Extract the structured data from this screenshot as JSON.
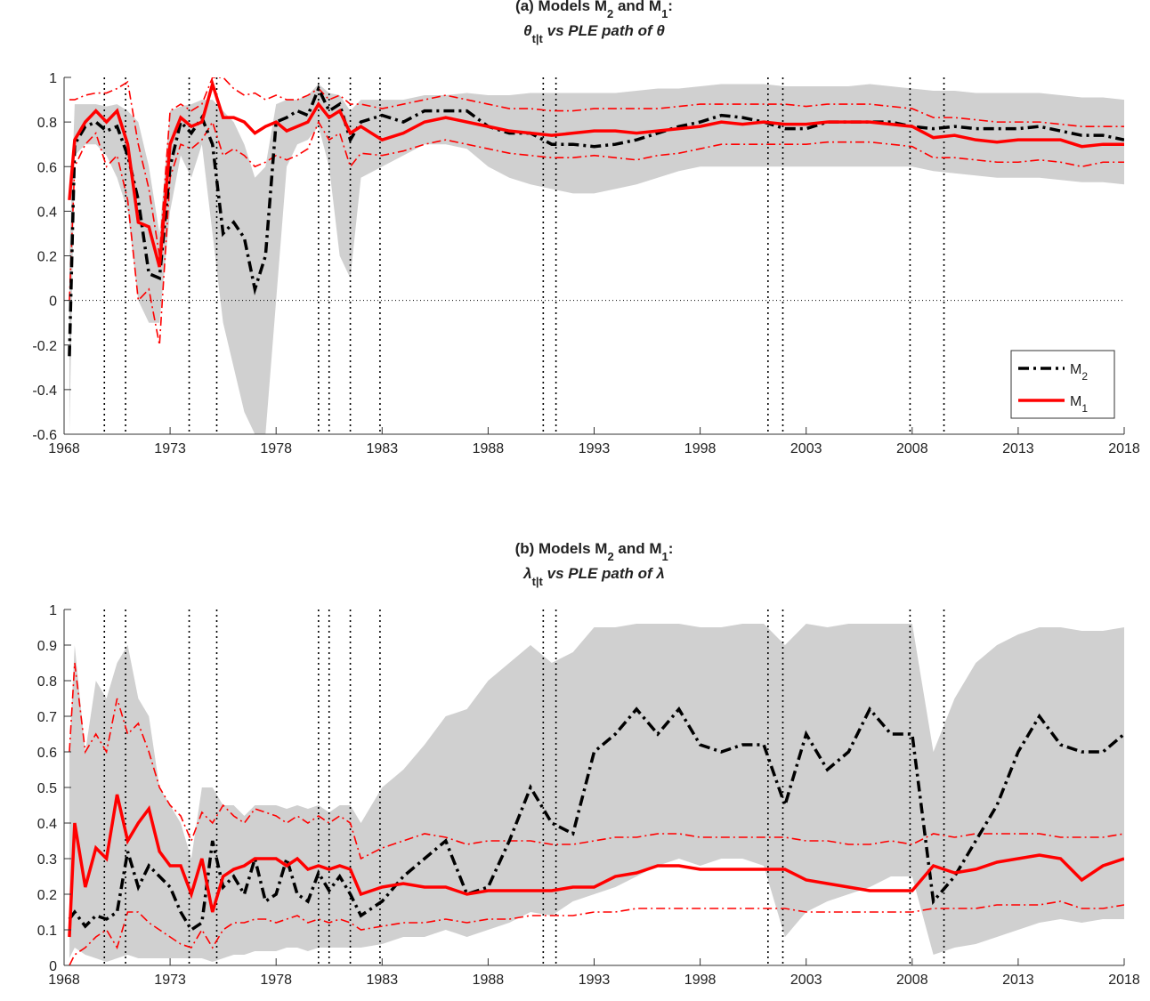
{
  "chart_data": [
    {
      "type": "line",
      "title": [
        [
          "(a) Models M",
          "2",
          " and M",
          "1",
          ":"
        ],
        [
          "θ",
          "t|t",
          " vs PLE path of θ"
        ]
      ],
      "x": [
        1968.25,
        1968.5,
        1969,
        1969.5,
        1970,
        1970.5,
        1971,
        1971.5,
        1972,
        1972.5,
        1973,
        1973.5,
        1974,
        1974.5,
        1975,
        1975.5,
        1976,
        1976.5,
        1977,
        1977.5,
        1978,
        1978.5,
        1979,
        1979.5,
        1980,
        1980.5,
        1981,
        1981.5,
        1982,
        1983,
        1984,
        1985,
        1986,
        1987,
        1988,
        1989,
        1990,
        1991,
        1992,
        1993,
        1994,
        1995,
        1996,
        1997,
        1998,
        1999,
        2000,
        2001,
        2002,
        2003,
        2004,
        2005,
        2006,
        2007,
        2008,
        2009,
        2010,
        2011,
        2012,
        2013,
        2014,
        2015,
        2016,
        2017,
        2018
      ],
      "band": {
        "color": "#d0d0d0",
        "lower": [
          -0.6,
          0.65,
          0.7,
          0.7,
          0.65,
          0.55,
          0.4,
          0.0,
          -0.1,
          -0.1,
          0.4,
          0.65,
          0.55,
          0.7,
          0.3,
          -0.1,
          -0.3,
          -0.5,
          -0.6,
          -0.6,
          0.0,
          0.6,
          0.7,
          0.72,
          0.78,
          0.6,
          0.2,
          0.1,
          0.55,
          0.6,
          0.65,
          0.7,
          0.7,
          0.68,
          0.6,
          0.55,
          0.52,
          0.5,
          0.48,
          0.48,
          0.5,
          0.52,
          0.55,
          0.58,
          0.6,
          0.6,
          0.6,
          0.6,
          0.6,
          0.6,
          0.6,
          0.6,
          0.6,
          0.6,
          0.6,
          0.58,
          0.57,
          0.56,
          0.55,
          0.55,
          0.55,
          0.54,
          0.53,
          0.53,
          0.52
        ],
        "upper": [
          0.2,
          0.88,
          0.88,
          0.88,
          0.87,
          0.88,
          0.85,
          0.8,
          0.6,
          0.3,
          0.85,
          0.87,
          0.88,
          0.9,
          0.9,
          0.85,
          0.8,
          0.7,
          0.55,
          0.6,
          0.88,
          0.9,
          0.9,
          0.92,
          0.97,
          0.93,
          0.92,
          0.85,
          0.9,
          0.9,
          0.9,
          0.92,
          0.92,
          0.93,
          0.92,
          0.92,
          0.93,
          0.93,
          0.93,
          0.93,
          0.93,
          0.94,
          0.95,
          0.95,
          0.96,
          0.97,
          0.97,
          0.97,
          0.96,
          0.96,
          0.96,
          0.96,
          0.97,
          0.96,
          0.95,
          0.94,
          0.94,
          0.93,
          0.93,
          0.93,
          0.93,
          0.92,
          0.91,
          0.91,
          0.9
        ]
      },
      "interval": {
        "color": "#ff0000",
        "lower": [
          0.0,
          0.6,
          0.7,
          0.75,
          0.6,
          0.65,
          0.45,
          0.0,
          0.05,
          -0.2,
          0.55,
          0.7,
          0.68,
          0.72,
          0.8,
          0.65,
          0.68,
          0.65,
          0.6,
          0.62,
          0.65,
          0.63,
          0.65,
          0.68,
          0.8,
          0.72,
          0.75,
          0.6,
          0.66,
          0.65,
          0.67,
          0.7,
          0.72,
          0.7,
          0.68,
          0.66,
          0.65,
          0.64,
          0.64,
          0.65,
          0.64,
          0.63,
          0.65,
          0.66,
          0.68,
          0.7,
          0.7,
          0.7,
          0.7,
          0.7,
          0.71,
          0.71,
          0.71,
          0.7,
          0.69,
          0.64,
          0.64,
          0.63,
          0.62,
          0.62,
          0.63,
          0.62,
          0.6,
          0.62,
          0.62
        ],
        "upper": [
          0.9,
          0.9,
          0.92,
          0.93,
          0.93,
          0.95,
          0.98,
          0.7,
          0.5,
          0.2,
          0.85,
          0.88,
          0.85,
          0.88,
          1.0,
          1.0,
          0.95,
          0.92,
          0.93,
          0.9,
          0.92,
          0.9,
          0.9,
          0.92,
          0.95,
          0.9,
          0.92,
          0.88,
          0.88,
          0.86,
          0.88,
          0.9,
          0.92,
          0.9,
          0.88,
          0.86,
          0.86,
          0.85,
          0.85,
          0.86,
          0.86,
          0.86,
          0.86,
          0.87,
          0.88,
          0.88,
          0.88,
          0.88,
          0.88,
          0.87,
          0.88,
          0.88,
          0.88,
          0.87,
          0.86,
          0.82,
          0.82,
          0.81,
          0.8,
          0.8,
          0.8,
          0.79,
          0.78,
          0.78,
          0.78
        ]
      },
      "series": [
        {
          "name": "M2",
          "color": "#000000",
          "style": "dashdot",
          "values": [
            -0.25,
            0.7,
            0.78,
            0.8,
            0.76,
            0.78,
            0.65,
            0.45,
            0.12,
            0.1,
            0.6,
            0.8,
            0.75,
            0.82,
            0.7,
            0.3,
            0.35,
            0.28,
            0.05,
            0.2,
            0.8,
            0.82,
            0.85,
            0.83,
            0.95,
            0.85,
            0.88,
            0.72,
            0.8,
            0.83,
            0.8,
            0.85,
            0.85,
            0.85,
            0.78,
            0.75,
            0.75,
            0.7,
            0.7,
            0.69,
            0.7,
            0.72,
            0.75,
            0.78,
            0.8,
            0.83,
            0.82,
            0.8,
            0.77,
            0.77,
            0.8,
            0.8,
            0.8,
            0.8,
            0.78,
            0.77,
            0.78,
            0.77,
            0.77,
            0.77,
            0.78,
            0.76,
            0.74,
            0.74,
            0.72
          ]
        },
        {
          "name": "M1",
          "color": "#ff0000",
          "style": "solid",
          "values": [
            0.45,
            0.72,
            0.8,
            0.85,
            0.8,
            0.85,
            0.7,
            0.35,
            0.33,
            0.15,
            0.7,
            0.82,
            0.78,
            0.8,
            0.97,
            0.82,
            0.82,
            0.8,
            0.75,
            0.78,
            0.8,
            0.76,
            0.78,
            0.8,
            0.88,
            0.82,
            0.85,
            0.75,
            0.78,
            0.72,
            0.75,
            0.8,
            0.82,
            0.8,
            0.78,
            0.76,
            0.75,
            0.74,
            0.75,
            0.76,
            0.76,
            0.75,
            0.76,
            0.77,
            0.78,
            0.8,
            0.79,
            0.8,
            0.79,
            0.79,
            0.8,
            0.8,
            0.8,
            0.79,
            0.78,
            0.73,
            0.74,
            0.72,
            0.71,
            0.72,
            0.72,
            0.72,
            0.69,
            0.7,
            0.7
          ]
        }
      ],
      "vlines": [
        1969.9,
        1970.9,
        1973.9,
        1975.2,
        1980.0,
        1980.5,
        1981.5,
        1982.9,
        1990.6,
        1991.2,
        2001.2,
        2001.9,
        2007.9,
        2009.5
      ],
      "hline": 0,
      "xlim": [
        1968,
        2018
      ],
      "xticks": [
        1968,
        1973,
        1978,
        1983,
        1988,
        1993,
        1998,
        2003,
        2008,
        2013,
        2018
      ],
      "ylim": [
        -0.6,
        1
      ],
      "yticks": [
        -0.6,
        -0.4,
        -0.2,
        0,
        0.2,
        0.4,
        0.6,
        0.8,
        1
      ],
      "legend": "lower right"
    },
    {
      "type": "line",
      "title": [
        [
          "(b) Models M",
          "2",
          " and M",
          "1",
          ":"
        ],
        [
          "λ",
          "t|t",
          " vs PLE path of λ"
        ]
      ],
      "x": [
        1968.25,
        1968.5,
        1969,
        1969.5,
        1970,
        1970.5,
        1971,
        1971.5,
        1972,
        1972.5,
        1973,
        1973.5,
        1974,
        1974.5,
        1975,
        1975.5,
        1976,
        1976.5,
        1977,
        1977.5,
        1978,
        1978.5,
        1979,
        1979.5,
        1980,
        1980.5,
        1981,
        1981.5,
        1982,
        1983,
        1984,
        1985,
        1986,
        1987,
        1988,
        1989,
        1990,
        1991,
        1992,
        1993,
        1994,
        1995,
        1996,
        1997,
        1998,
        1999,
        2000,
        2001,
        2002,
        2003,
        2004,
        2005,
        2006,
        2007,
        2008,
        2009,
        2010,
        2011,
        2012,
        2013,
        2014,
        2015,
        2016,
        2017,
        2018
      ],
      "band": {
        "color": "#d0d0d0",
        "lower": [
          0.02,
          0.05,
          0.03,
          0.02,
          0.01,
          0.02,
          0.03,
          0.02,
          0.02,
          0.02,
          0.02,
          0.02,
          0.02,
          0.02,
          0.01,
          0.02,
          0.03,
          0.03,
          0.04,
          0.04,
          0.04,
          0.05,
          0.05,
          0.04,
          0.05,
          0.05,
          0.05,
          0.05,
          0.05,
          0.06,
          0.08,
          0.08,
          0.1,
          0.08,
          0.1,
          0.12,
          0.15,
          0.14,
          0.18,
          0.2,
          0.22,
          0.25,
          0.28,
          0.3,
          0.28,
          0.3,
          0.3,
          0.28,
          0.08,
          0.15,
          0.18,
          0.2,
          0.22,
          0.25,
          0.25,
          0.03,
          0.05,
          0.06,
          0.08,
          0.1,
          0.12,
          0.13,
          0.12,
          0.13,
          0.13
        ],
        "upper": [
          0.6,
          0.9,
          0.6,
          0.8,
          0.75,
          0.85,
          0.9,
          0.75,
          0.7,
          0.5,
          0.45,
          0.4,
          0.3,
          0.5,
          0.5,
          0.45,
          0.45,
          0.42,
          0.45,
          0.45,
          0.45,
          0.44,
          0.45,
          0.44,
          0.45,
          0.43,
          0.45,
          0.45,
          0.4,
          0.5,
          0.55,
          0.62,
          0.7,
          0.72,
          0.8,
          0.85,
          0.9,
          0.85,
          0.88,
          0.95,
          0.95,
          0.96,
          0.96,
          0.96,
          0.95,
          0.95,
          0.96,
          0.96,
          0.9,
          0.96,
          0.95,
          0.96,
          0.96,
          0.96,
          0.96,
          0.6,
          0.75,
          0.85,
          0.9,
          0.93,
          0.95,
          0.95,
          0.94,
          0.94,
          0.95
        ]
      },
      "interval": {
        "color": "#ff0000",
        "lower": [
          0.0,
          0.03,
          0.05,
          0.08,
          0.1,
          0.05,
          0.15,
          0.15,
          0.12,
          0.1,
          0.08,
          0.06,
          0.05,
          0.1,
          0.05,
          0.1,
          0.12,
          0.12,
          0.13,
          0.13,
          0.12,
          0.13,
          0.14,
          0.12,
          0.13,
          0.12,
          0.13,
          0.12,
          0.1,
          0.11,
          0.12,
          0.12,
          0.13,
          0.12,
          0.13,
          0.13,
          0.14,
          0.14,
          0.14,
          0.15,
          0.15,
          0.16,
          0.16,
          0.16,
          0.16,
          0.16,
          0.16,
          0.16,
          0.16,
          0.15,
          0.15,
          0.15,
          0.15,
          0.15,
          0.15,
          0.16,
          0.16,
          0.16,
          0.17,
          0.17,
          0.17,
          0.18,
          0.16,
          0.16,
          0.17
        ],
        "upper": [
          0.6,
          0.85,
          0.6,
          0.65,
          0.6,
          0.75,
          0.65,
          0.68,
          0.6,
          0.5,
          0.45,
          0.42,
          0.35,
          0.43,
          0.4,
          0.45,
          0.42,
          0.4,
          0.44,
          0.43,
          0.42,
          0.4,
          0.42,
          0.4,
          0.42,
          0.4,
          0.42,
          0.4,
          0.3,
          0.33,
          0.35,
          0.37,
          0.36,
          0.34,
          0.35,
          0.35,
          0.35,
          0.34,
          0.34,
          0.35,
          0.36,
          0.36,
          0.37,
          0.37,
          0.36,
          0.36,
          0.36,
          0.36,
          0.36,
          0.35,
          0.35,
          0.34,
          0.34,
          0.35,
          0.34,
          0.37,
          0.36,
          0.37,
          0.37,
          0.37,
          0.37,
          0.36,
          0.36,
          0.36,
          0.37
        ]
      },
      "series": [
        {
          "name": "M2",
          "color": "#000000",
          "style": "dashdot",
          "values": [
            0.13,
            0.15,
            0.11,
            0.14,
            0.13,
            0.15,
            0.32,
            0.22,
            0.28,
            0.25,
            0.22,
            0.15,
            0.1,
            0.12,
            0.35,
            0.22,
            0.25,
            0.2,
            0.3,
            0.18,
            0.2,
            0.3,
            0.2,
            0.18,
            0.26,
            0.21,
            0.25,
            0.2,
            0.14,
            0.18,
            0.25,
            0.3,
            0.35,
            0.2,
            0.22,
            0.35,
            0.5,
            0.4,
            0.37,
            0.6,
            0.65,
            0.72,
            0.65,
            0.72,
            0.62,
            0.6,
            0.62,
            0.62,
            0.45,
            0.65,
            0.55,
            0.6,
            0.72,
            0.65,
            0.65,
            0.18,
            0.25,
            0.35,
            0.45,
            0.6,
            0.7,
            0.62,
            0.6,
            0.6,
            0.65
          ]
        },
        {
          "name": "M1",
          "color": "#ff0000",
          "style": "solid",
          "values": [
            0.08,
            0.4,
            0.22,
            0.33,
            0.3,
            0.48,
            0.35,
            0.4,
            0.44,
            0.32,
            0.28,
            0.28,
            0.2,
            0.3,
            0.15,
            0.25,
            0.27,
            0.28,
            0.3,
            0.3,
            0.3,
            0.28,
            0.3,
            0.27,
            0.28,
            0.27,
            0.28,
            0.27,
            0.2,
            0.22,
            0.23,
            0.22,
            0.22,
            0.2,
            0.21,
            0.21,
            0.21,
            0.21,
            0.22,
            0.22,
            0.25,
            0.26,
            0.28,
            0.28,
            0.27,
            0.27,
            0.27,
            0.27,
            0.27,
            0.24,
            0.23,
            0.22,
            0.21,
            0.21,
            0.21,
            0.28,
            0.26,
            0.27,
            0.29,
            0.3,
            0.31,
            0.3,
            0.24,
            0.28,
            0.3
          ]
        }
      ],
      "vlines": [
        1969.9,
        1970.9,
        1973.9,
        1975.2,
        1980.0,
        1980.5,
        1981.5,
        1982.9,
        1990.6,
        1991.2,
        2001.2,
        2001.9,
        2007.9,
        2009.5
      ],
      "xlim": [
        1968,
        2018
      ],
      "xticks": [
        1968,
        1973,
        1978,
        1983,
        1988,
        1993,
        1998,
        2003,
        2008,
        2013,
        2018
      ],
      "ylim": [
        0,
        1
      ],
      "yticks": [
        0,
        0.1,
        0.2,
        0.3,
        0.4,
        0.5,
        0.6,
        0.7,
        0.8,
        0.9,
        1
      ]
    }
  ]
}
